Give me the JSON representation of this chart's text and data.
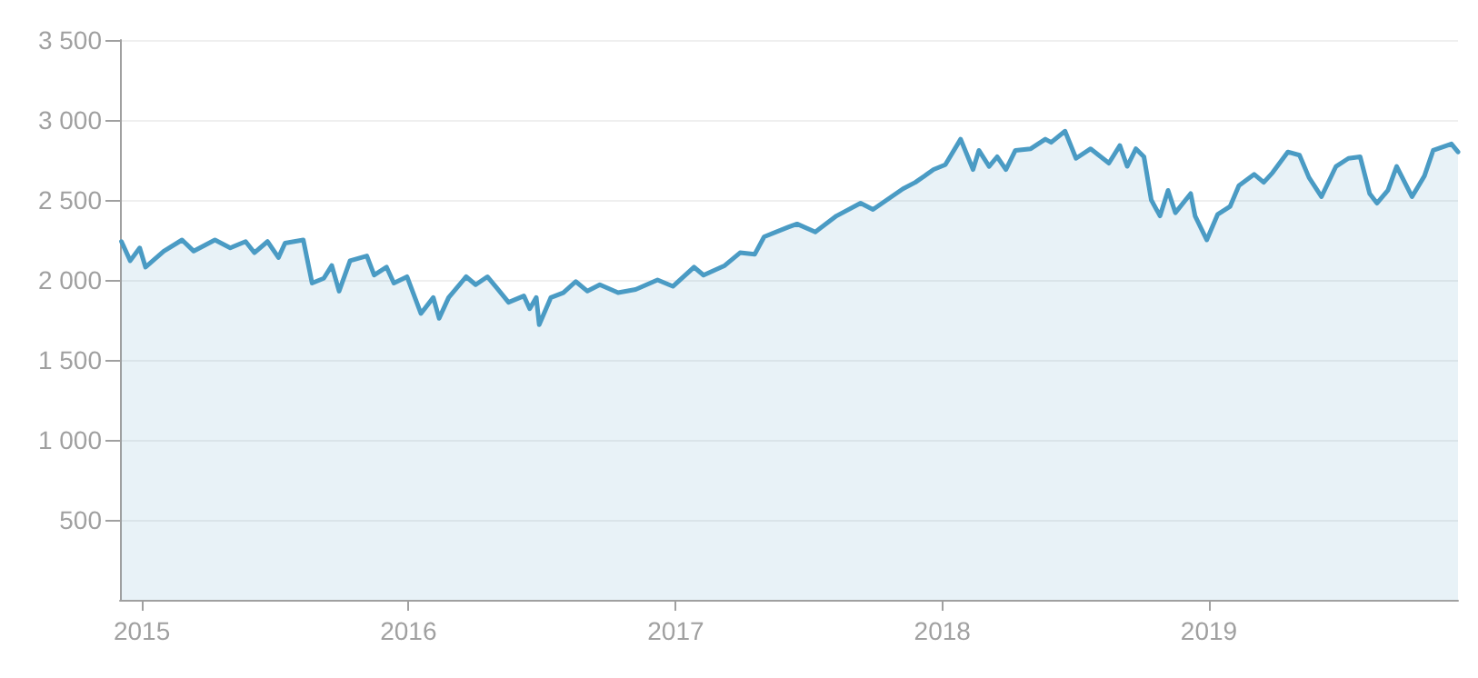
{
  "chart_data": {
    "type": "area",
    "x": [
      "2014-12-04",
      "2014-12-16",
      "2014-12-29",
      "2015-01-06",
      "2015-01-31",
      "2015-02-25",
      "2015-03-13",
      "2015-04-11",
      "2015-05-02",
      "2015-05-23",
      "2015-06-04",
      "2015-06-22",
      "2015-07-07",
      "2015-07-16",
      "2015-08-10",
      "2015-08-22",
      "2015-09-07",
      "2015-09-18",
      "2015-09-28",
      "2015-10-13",
      "2015-11-05",
      "2015-11-15",
      "2015-12-02",
      "2015-12-12",
      "2015-12-30",
      "2016-01-18",
      "2016-02-04",
      "2016-02-12",
      "2016-02-25",
      "2016-03-20",
      "2016-04-02",
      "2016-04-18",
      "2016-05-01",
      "2016-05-17",
      "2016-06-07",
      "2016-06-15",
      "2016-06-24",
      "2016-06-28",
      "2016-07-14",
      "2016-07-31",
      "2016-08-17",
      "2016-09-02",
      "2016-09-19",
      "2016-10-14",
      "2016-11-07",
      "2016-12-07",
      "2016-12-28",
      "2017-01-26",
      "2017-02-08",
      "2017-03-09",
      "2017-03-30",
      "2017-04-19",
      "2017-05-02",
      "2017-06-04",
      "2017-06-16",
      "2017-07-11",
      "2017-08-09",
      "2017-09-11",
      "2017-09-28",
      "2017-11-08",
      "2017-11-25",
      "2017-12-20",
      "2018-01-05",
      "2018-01-26",
      "2018-02-12",
      "2018-02-20",
      "2018-03-06",
      "2018-03-17",
      "2018-03-29",
      "2018-04-11",
      "2018-05-02",
      "2018-05-22",
      "2018-05-30",
      "2018-06-18",
      "2018-07-03",
      "2018-07-23",
      "2018-08-17",
      "2018-09-01",
      "2018-09-11",
      "2018-09-23",
      "2018-10-04",
      "2018-10-14",
      "2018-10-26",
      "2018-11-06",
      "2018-11-16",
      "2018-12-07",
      "2018-12-13",
      "2018-12-29",
      "2019-01-13",
      "2019-01-30",
      "2019-02-11",
      "2019-03-04",
      "2019-03-17",
      "2019-03-29",
      "2019-04-19",
      "2019-05-05",
      "2019-05-18",
      "2019-06-04",
      "2019-06-24",
      "2019-07-11",
      "2019-07-27",
      "2019-08-09",
      "2019-08-19",
      "2019-09-03",
      "2019-09-15",
      "2019-10-06",
      "2019-10-23",
      "2019-11-04",
      "2019-11-29",
      "2019-12-08"
    ],
    "series": [
      {
        "color": "#4a9bc4",
        "values": [
          2240,
          2120,
          2200,
          2080,
          2180,
          2250,
          2180,
          2250,
          2200,
          2240,
          2170,
          2240,
          2140,
          2230,
          2250,
          1980,
          2010,
          2090,
          1930,
          2120,
          2150,
          2030,
          2080,
          1980,
          2020,
          1790,
          1890,
          1760,
          1890,
          2020,
          1970,
          2020,
          1950,
          1860,
          1900,
          1820,
          1890,
          1720,
          1890,
          1920,
          1990,
          1930,
          1970,
          1920,
          1940,
          2000,
          1960,
          2080,
          2030,
          2090,
          2170,
          2160,
          2270,
          2330,
          2350,
          2300,
          2400,
          2480,
          2440,
          2570,
          2610,
          2690,
          2720,
          2880,
          2690,
          2810,
          2710,
          2770,
          2690,
          2810,
          2820,
          2880,
          2860,
          2930,
          2760,
          2820,
          2730,
          2840,
          2710,
          2820,
          2770,
          2500,
          2400,
          2560,
          2420,
          2540,
          2400,
          2250,
          2410,
          2460,
          2590,
          2660,
          2610,
          2670,
          2800,
          2780,
          2640,
          2520,
          2710,
          2760,
          2770,
          2540,
          2480,
          2560,
          2710,
          2520,
          2650,
          2810,
          2850,
          2800
        ]
      }
    ],
    "xlim": [
      "2014-12-02",
      "2019-12-08"
    ],
    "xticks": [
      "2015",
      "2016",
      "2017",
      "2018",
      "2019"
    ],
    "ylim": [
      0,
      3500
    ],
    "yticks": [
      {
        "value": 500,
        "label": "500"
      },
      {
        "value": 1000,
        "label": "1 000"
      },
      {
        "value": 1500,
        "label": "1 500"
      },
      {
        "value": 2000,
        "label": "2 000"
      },
      {
        "value": 2500,
        "label": "2 500"
      },
      {
        "value": 3000,
        "label": "3 000"
      },
      {
        "value": 3500,
        "label": "3 500"
      }
    ],
    "grid": "y",
    "marker": "none"
  }
}
